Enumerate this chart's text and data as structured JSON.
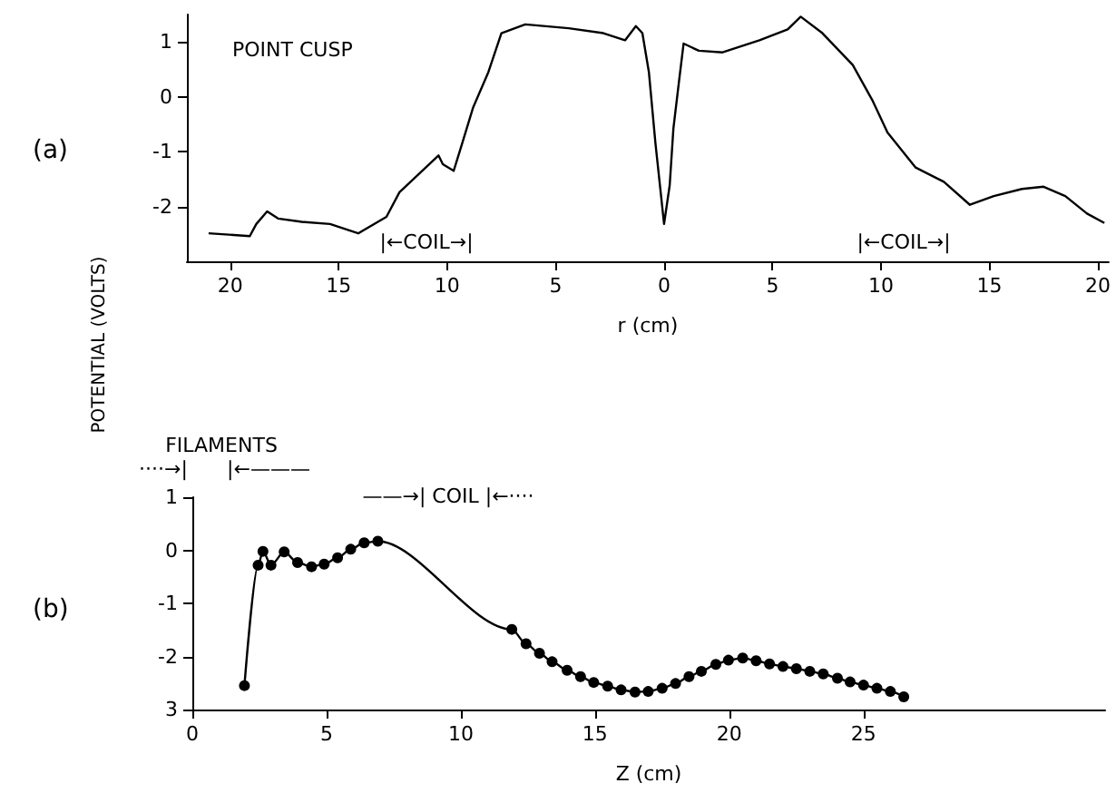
{
  "chart_data": [
    {
      "type": "line",
      "title": "(a)",
      "xlabel": "r (cm)",
      "ylabel": "POTENTIAL (VOLTS)",
      "annotations": [
        "POINT CUSP",
        "|←COIL→|",
        "|←COIL→|"
      ],
      "x": [
        -21.0,
        -19.1,
        -18.8,
        -18.3,
        -17.8,
        -16.7,
        -15.4,
        -14.1,
        -12.8,
        -12.2,
        -11.5,
        -10.4,
        -10.2,
        -9.7,
        -9.3,
        -8.8,
        -8.1,
        -7.5,
        -6.4,
        -4.4,
        -2.8,
        -1.8,
        -1.3,
        -1.0,
        -0.7,
        -0.4,
        0,
        0.26,
        0.43,
        0.7,
        0.9,
        1.6,
        2.7,
        4.4,
        5.7,
        6.3,
        7.3,
        8.7,
        9.6,
        10.3,
        11.6,
        12.9,
        14.1,
        15.2,
        16.5,
        17.5,
        18.5,
        19.5,
        20.3
      ],
      "values": [
        -2.49,
        -2.54,
        -2.32,
        -2.09,
        -2.22,
        -2.28,
        -2.32,
        -2.49,
        -2.19,
        -1.74,
        -1.48,
        -1.07,
        -1.23,
        -1.35,
        -0.84,
        -0.19,
        0.45,
        1.16,
        1.32,
        1.25,
        1.16,
        1.03,
        1.29,
        1.16,
        0.45,
        -0.84,
        -2.32,
        -1.61,
        -0.58,
        0.32,
        0.97,
        0.84,
        0.81,
        1.03,
        1.23,
        1.46,
        1.16,
        0.58,
        -0.06,
        -0.65,
        -1.29,
        -1.55,
        -1.97,
        -1.81,
        -1.68,
        -1.64,
        -1.81,
        -2.13,
        -2.3
      ],
      "color": "#000000",
      "marker": "none",
      "grid": false,
      "xlim": [
        -22,
        20.5
      ],
      "xticks": [
        {
          "value": -20,
          "label": "20"
        },
        {
          "value": -15,
          "label": "15"
        },
        {
          "value": -10,
          "label": "10"
        },
        {
          "value": -5,
          "label": "5"
        },
        0,
        5,
        10,
        15,
        20
      ],
      "ylim": [
        -3,
        1.5
      ],
      "yticks": [
        -2,
        -1,
        0,
        1
      ]
    },
    {
      "type": "line",
      "title": "(b)",
      "xlabel": "Z (cm)",
      "annotations": [
        "FILAMENTS",
        "····→|",
        "|←———",
        "——→| COIL |←····"
      ],
      "x": [
        1.94,
        2.45,
        2.63,
        2.93,
        3.42,
        3.92,
        4.44,
        4.91,
        5.41,
        5.9,
        6.4,
        6.91,
        11.9,
        12.43,
        12.93,
        13.4,
        13.96,
        14.46,
        14.95,
        15.47,
        15.97,
        16.49,
        16.98,
        17.5,
        18.0,
        18.5,
        18.96,
        19.5,
        19.97,
        20.5,
        21.0,
        21.5,
        22.0,
        22.5,
        23.0,
        23.5,
        24.03,
        24.5,
        25.0,
        25.5,
        26.0,
        26.5
      ],
      "values": [
        -2.55,
        -0.28,
        -0.02,
        -0.28,
        -0.03,
        -0.23,
        -0.31,
        -0.26,
        -0.14,
        0.02,
        0.14,
        0.17,
        -1.49,
        -1.76,
        -1.94,
        -2.1,
        -2.26,
        -2.38,
        -2.49,
        -2.56,
        -2.63,
        -2.67,
        -2.66,
        -2.6,
        -2.51,
        -2.38,
        -2.28,
        -2.15,
        -2.07,
        -2.03,
        -2.08,
        -2.14,
        -2.19,
        -2.23,
        -2.28,
        -2.33,
        -2.41,
        -2.48,
        -2.54,
        -2.6,
        -2.66,
        -2.76
      ],
      "color": "#000000",
      "marker": "circle",
      "grid": false,
      "xlim": [
        0,
        34
      ],
      "xticks": [
        0,
        5,
        10,
        15,
        20,
        25
      ],
      "ylim": [
        -3,
        1
      ],
      "yticks": [
        {
          "value": -3,
          "label": "3"
        },
        -2,
        -1,
        0,
        1
      ]
    }
  ]
}
